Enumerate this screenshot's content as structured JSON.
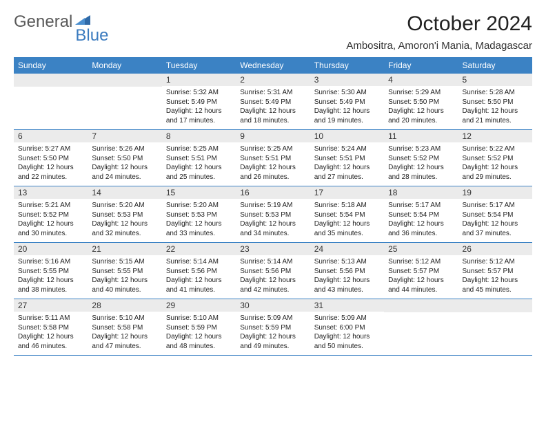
{
  "logo": {
    "text1": "General",
    "text2": "Blue"
  },
  "title": "October 2024",
  "location": "Ambositra, Amoron'i Mania, Madagascar",
  "colors": {
    "header_bg": "#3b82c4",
    "header_text": "#ffffff",
    "daynum_bg": "#ebebeb",
    "row_border": "#3b82c4",
    "logo_gray": "#5a5a5a",
    "logo_blue": "#3b7bbf"
  },
  "day_names": [
    "Sunday",
    "Monday",
    "Tuesday",
    "Wednesday",
    "Thursday",
    "Friday",
    "Saturday"
  ],
  "weeks": [
    [
      {
        "n": "",
        "sr": "",
        "ss": "",
        "dl": ""
      },
      {
        "n": "",
        "sr": "",
        "ss": "",
        "dl": ""
      },
      {
        "n": "1",
        "sr": "Sunrise: 5:32 AM",
        "ss": "Sunset: 5:49 PM",
        "dl": "Daylight: 12 hours and 17 minutes."
      },
      {
        "n": "2",
        "sr": "Sunrise: 5:31 AM",
        "ss": "Sunset: 5:49 PM",
        "dl": "Daylight: 12 hours and 18 minutes."
      },
      {
        "n": "3",
        "sr": "Sunrise: 5:30 AM",
        "ss": "Sunset: 5:49 PM",
        "dl": "Daylight: 12 hours and 19 minutes."
      },
      {
        "n": "4",
        "sr": "Sunrise: 5:29 AM",
        "ss": "Sunset: 5:50 PM",
        "dl": "Daylight: 12 hours and 20 minutes."
      },
      {
        "n": "5",
        "sr": "Sunrise: 5:28 AM",
        "ss": "Sunset: 5:50 PM",
        "dl": "Daylight: 12 hours and 21 minutes."
      }
    ],
    [
      {
        "n": "6",
        "sr": "Sunrise: 5:27 AM",
        "ss": "Sunset: 5:50 PM",
        "dl": "Daylight: 12 hours and 22 minutes."
      },
      {
        "n": "7",
        "sr": "Sunrise: 5:26 AM",
        "ss": "Sunset: 5:50 PM",
        "dl": "Daylight: 12 hours and 24 minutes."
      },
      {
        "n": "8",
        "sr": "Sunrise: 5:25 AM",
        "ss": "Sunset: 5:51 PM",
        "dl": "Daylight: 12 hours and 25 minutes."
      },
      {
        "n": "9",
        "sr": "Sunrise: 5:25 AM",
        "ss": "Sunset: 5:51 PM",
        "dl": "Daylight: 12 hours and 26 minutes."
      },
      {
        "n": "10",
        "sr": "Sunrise: 5:24 AM",
        "ss": "Sunset: 5:51 PM",
        "dl": "Daylight: 12 hours and 27 minutes."
      },
      {
        "n": "11",
        "sr": "Sunrise: 5:23 AM",
        "ss": "Sunset: 5:52 PM",
        "dl": "Daylight: 12 hours and 28 minutes."
      },
      {
        "n": "12",
        "sr": "Sunrise: 5:22 AM",
        "ss": "Sunset: 5:52 PM",
        "dl": "Daylight: 12 hours and 29 minutes."
      }
    ],
    [
      {
        "n": "13",
        "sr": "Sunrise: 5:21 AM",
        "ss": "Sunset: 5:52 PM",
        "dl": "Daylight: 12 hours and 30 minutes."
      },
      {
        "n": "14",
        "sr": "Sunrise: 5:20 AM",
        "ss": "Sunset: 5:53 PM",
        "dl": "Daylight: 12 hours and 32 minutes."
      },
      {
        "n": "15",
        "sr": "Sunrise: 5:20 AM",
        "ss": "Sunset: 5:53 PM",
        "dl": "Daylight: 12 hours and 33 minutes."
      },
      {
        "n": "16",
        "sr": "Sunrise: 5:19 AM",
        "ss": "Sunset: 5:53 PM",
        "dl": "Daylight: 12 hours and 34 minutes."
      },
      {
        "n": "17",
        "sr": "Sunrise: 5:18 AM",
        "ss": "Sunset: 5:54 PM",
        "dl": "Daylight: 12 hours and 35 minutes."
      },
      {
        "n": "18",
        "sr": "Sunrise: 5:17 AM",
        "ss": "Sunset: 5:54 PM",
        "dl": "Daylight: 12 hours and 36 minutes."
      },
      {
        "n": "19",
        "sr": "Sunrise: 5:17 AM",
        "ss": "Sunset: 5:54 PM",
        "dl": "Daylight: 12 hours and 37 minutes."
      }
    ],
    [
      {
        "n": "20",
        "sr": "Sunrise: 5:16 AM",
        "ss": "Sunset: 5:55 PM",
        "dl": "Daylight: 12 hours and 38 minutes."
      },
      {
        "n": "21",
        "sr": "Sunrise: 5:15 AM",
        "ss": "Sunset: 5:55 PM",
        "dl": "Daylight: 12 hours and 40 minutes."
      },
      {
        "n": "22",
        "sr": "Sunrise: 5:14 AM",
        "ss": "Sunset: 5:56 PM",
        "dl": "Daylight: 12 hours and 41 minutes."
      },
      {
        "n": "23",
        "sr": "Sunrise: 5:14 AM",
        "ss": "Sunset: 5:56 PM",
        "dl": "Daylight: 12 hours and 42 minutes."
      },
      {
        "n": "24",
        "sr": "Sunrise: 5:13 AM",
        "ss": "Sunset: 5:56 PM",
        "dl": "Daylight: 12 hours and 43 minutes."
      },
      {
        "n": "25",
        "sr": "Sunrise: 5:12 AM",
        "ss": "Sunset: 5:57 PM",
        "dl": "Daylight: 12 hours and 44 minutes."
      },
      {
        "n": "26",
        "sr": "Sunrise: 5:12 AM",
        "ss": "Sunset: 5:57 PM",
        "dl": "Daylight: 12 hours and 45 minutes."
      }
    ],
    [
      {
        "n": "27",
        "sr": "Sunrise: 5:11 AM",
        "ss": "Sunset: 5:58 PM",
        "dl": "Daylight: 12 hours and 46 minutes."
      },
      {
        "n": "28",
        "sr": "Sunrise: 5:10 AM",
        "ss": "Sunset: 5:58 PM",
        "dl": "Daylight: 12 hours and 47 minutes."
      },
      {
        "n": "29",
        "sr": "Sunrise: 5:10 AM",
        "ss": "Sunset: 5:59 PM",
        "dl": "Daylight: 12 hours and 48 minutes."
      },
      {
        "n": "30",
        "sr": "Sunrise: 5:09 AM",
        "ss": "Sunset: 5:59 PM",
        "dl": "Daylight: 12 hours and 49 minutes."
      },
      {
        "n": "31",
        "sr": "Sunrise: 5:09 AM",
        "ss": "Sunset: 6:00 PM",
        "dl": "Daylight: 12 hours and 50 minutes."
      },
      {
        "n": "",
        "sr": "",
        "ss": "",
        "dl": ""
      },
      {
        "n": "",
        "sr": "",
        "ss": "",
        "dl": ""
      }
    ]
  ]
}
